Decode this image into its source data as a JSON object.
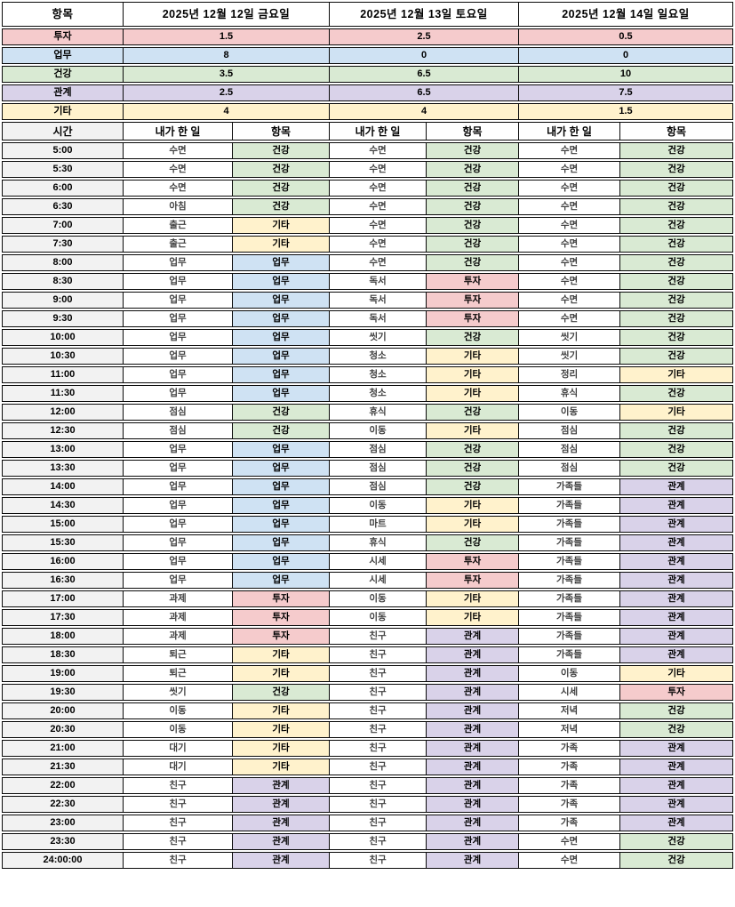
{
  "table": {
    "corner_label": "항목",
    "day_headers": [
      "2025년 12월 12일 금요일",
      "2025년 12월 13일 토요일",
      "2025년 12월 14일 일요일"
    ],
    "summary_rows": [
      {
        "label": "투자",
        "values": [
          "1.5",
          "2.5",
          "0.5"
        ]
      },
      {
        "label": "업무",
        "values": [
          "8",
          "0",
          "0"
        ]
      },
      {
        "label": "건강",
        "values": [
          "3.5",
          "6.5",
          "10"
        ]
      },
      {
        "label": "관계",
        "values": [
          "2.5",
          "6.5",
          "7.5"
        ]
      },
      {
        "label": "기타",
        "values": [
          "4",
          "4",
          "1.5"
        ]
      }
    ],
    "time_header": {
      "time_label": "시간",
      "activity_label": "내가 한 일",
      "category_label": "항목"
    },
    "schedule_rows": [
      {
        "time": "5:00",
        "days": [
          [
            "수면",
            "건강"
          ],
          [
            "수면",
            "건강"
          ],
          [
            "수면",
            "건강"
          ]
        ]
      },
      {
        "time": "5:30",
        "days": [
          [
            "수면",
            "건강"
          ],
          [
            "수면",
            "건강"
          ],
          [
            "수면",
            "건강"
          ]
        ]
      },
      {
        "time": "6:00",
        "days": [
          [
            "수면",
            "건강"
          ],
          [
            "수면",
            "건강"
          ],
          [
            "수면",
            "건강"
          ]
        ]
      },
      {
        "time": "6:30",
        "days": [
          [
            "아침",
            "건강"
          ],
          [
            "수면",
            "건강"
          ],
          [
            "수면",
            "건강"
          ]
        ]
      },
      {
        "time": "7:00",
        "days": [
          [
            "출근",
            "기타"
          ],
          [
            "수면",
            "건강"
          ],
          [
            "수면",
            "건강"
          ]
        ]
      },
      {
        "time": "7:30",
        "days": [
          [
            "출근",
            "기타"
          ],
          [
            "수면",
            "건강"
          ],
          [
            "수면",
            "건강"
          ]
        ]
      },
      {
        "time": "8:00",
        "days": [
          [
            "업무",
            "업무"
          ],
          [
            "수면",
            "건강"
          ],
          [
            "수면",
            "건강"
          ]
        ]
      },
      {
        "time": "8:30",
        "days": [
          [
            "업무",
            "업무"
          ],
          [
            "독서",
            "투자"
          ],
          [
            "수면",
            "건강"
          ]
        ]
      },
      {
        "time": "9:00",
        "days": [
          [
            "업무",
            "업무"
          ],
          [
            "독서",
            "투자"
          ],
          [
            "수면",
            "건강"
          ]
        ]
      },
      {
        "time": "9:30",
        "days": [
          [
            "업무",
            "업무"
          ],
          [
            "독서",
            "투자"
          ],
          [
            "수면",
            "건강"
          ]
        ]
      },
      {
        "time": "10:00",
        "days": [
          [
            "업무",
            "업무"
          ],
          [
            "씻기",
            "건강"
          ],
          [
            "씻기",
            "건강"
          ]
        ]
      },
      {
        "time": "10:30",
        "days": [
          [
            "업무",
            "업무"
          ],
          [
            "청소",
            "기타"
          ],
          [
            "씻기",
            "건강"
          ]
        ]
      },
      {
        "time": "11:00",
        "days": [
          [
            "업무",
            "업무"
          ],
          [
            "청소",
            "기타"
          ],
          [
            "정리",
            "기타"
          ]
        ]
      },
      {
        "time": "11:30",
        "days": [
          [
            "업무",
            "업무"
          ],
          [
            "청소",
            "기타"
          ],
          [
            "휴식",
            "건강"
          ]
        ]
      },
      {
        "time": "12:00",
        "days": [
          [
            "점심",
            "건강"
          ],
          [
            "휴식",
            "건강"
          ],
          [
            "이동",
            "기타"
          ]
        ]
      },
      {
        "time": "12:30",
        "days": [
          [
            "점심",
            "건강"
          ],
          [
            "이동",
            "기타"
          ],
          [
            "점심",
            "건강"
          ]
        ]
      },
      {
        "time": "13:00",
        "days": [
          [
            "업무",
            "업무"
          ],
          [
            "점심",
            "건강"
          ],
          [
            "점심",
            "건강"
          ]
        ]
      },
      {
        "time": "13:30",
        "days": [
          [
            "업무",
            "업무"
          ],
          [
            "점심",
            "건강"
          ],
          [
            "점심",
            "건강"
          ]
        ]
      },
      {
        "time": "14:00",
        "days": [
          [
            "업무",
            "업무"
          ],
          [
            "점심",
            "건강"
          ],
          [
            "가족들",
            "관계"
          ]
        ]
      },
      {
        "time": "14:30",
        "days": [
          [
            "업무",
            "업무"
          ],
          [
            "이동",
            "기타"
          ],
          [
            "가족들",
            "관계"
          ]
        ]
      },
      {
        "time": "15:00",
        "days": [
          [
            "업무",
            "업무"
          ],
          [
            "마트",
            "기타"
          ],
          [
            "가족들",
            "관계"
          ]
        ]
      },
      {
        "time": "15:30",
        "days": [
          [
            "업무",
            "업무"
          ],
          [
            "휴식",
            "건강"
          ],
          [
            "가족들",
            "관계"
          ]
        ]
      },
      {
        "time": "16:00",
        "days": [
          [
            "업무",
            "업무"
          ],
          [
            "시세",
            "투자"
          ],
          [
            "가족들",
            "관계"
          ]
        ]
      },
      {
        "time": "16:30",
        "days": [
          [
            "업무",
            "업무"
          ],
          [
            "시세",
            "투자"
          ],
          [
            "가족들",
            "관계"
          ]
        ]
      },
      {
        "time": "17:00",
        "days": [
          [
            "과제",
            "투자"
          ],
          [
            "이동",
            "기타"
          ],
          [
            "가족들",
            "관계"
          ]
        ]
      },
      {
        "time": "17:30",
        "days": [
          [
            "과제",
            "투자"
          ],
          [
            "이동",
            "기타"
          ],
          [
            "가족들",
            "관계"
          ]
        ]
      },
      {
        "time": "18:00",
        "days": [
          [
            "과제",
            "투자"
          ],
          [
            "친구",
            "관계"
          ],
          [
            "가족들",
            "관계"
          ]
        ]
      },
      {
        "time": "18:30",
        "days": [
          [
            "퇴근",
            "기타"
          ],
          [
            "친구",
            "관계"
          ],
          [
            "가족들",
            "관계"
          ]
        ]
      },
      {
        "time": "19:00",
        "days": [
          [
            "퇴근",
            "기타"
          ],
          [
            "친구",
            "관계"
          ],
          [
            "이동",
            "기타"
          ]
        ]
      },
      {
        "time": "19:30",
        "days": [
          [
            "씻기",
            "건강"
          ],
          [
            "친구",
            "관계"
          ],
          [
            "시세",
            "투자"
          ]
        ]
      },
      {
        "time": "20:00",
        "days": [
          [
            "이동",
            "기타"
          ],
          [
            "친구",
            "관계"
          ],
          [
            "저녁",
            "건강"
          ]
        ]
      },
      {
        "time": "20:30",
        "days": [
          [
            "이동",
            "기타"
          ],
          [
            "친구",
            "관계"
          ],
          [
            "저녁",
            "건강"
          ]
        ]
      },
      {
        "time": "21:00",
        "days": [
          [
            "대기",
            "기타"
          ],
          [
            "친구",
            "관계"
          ],
          [
            "가족",
            "관계"
          ]
        ]
      },
      {
        "time": "21:30",
        "days": [
          [
            "대기",
            "기타"
          ],
          [
            "친구",
            "관계"
          ],
          [
            "가족",
            "관계"
          ]
        ]
      },
      {
        "time": "22:00",
        "days": [
          [
            "친구",
            "관계"
          ],
          [
            "친구",
            "관계"
          ],
          [
            "가족",
            "관계"
          ]
        ]
      },
      {
        "time": "22:30",
        "days": [
          [
            "친구",
            "관계"
          ],
          [
            "친구",
            "관계"
          ],
          [
            "가족",
            "관계"
          ]
        ]
      },
      {
        "time": "23:00",
        "days": [
          [
            "친구",
            "관계"
          ],
          [
            "친구",
            "관계"
          ],
          [
            "가족",
            "관계"
          ]
        ]
      },
      {
        "time": "23:30",
        "days": [
          [
            "친구",
            "관계"
          ],
          [
            "친구",
            "관계"
          ],
          [
            "수면",
            "건강"
          ]
        ]
      },
      {
        "time": "24:00:00",
        "days": [
          [
            "친구",
            "관계"
          ],
          [
            "친구",
            "관계"
          ],
          [
            "수면",
            "건강"
          ]
        ]
      }
    ]
  },
  "category_colors": {
    "투자": "#f5cbcc",
    "업무": "#cfe2f3",
    "건강": "#d9ead3",
    "관계": "#d9d2e9",
    "기타": "#fff2cc"
  },
  "time_column_color": "#f2f2f2"
}
